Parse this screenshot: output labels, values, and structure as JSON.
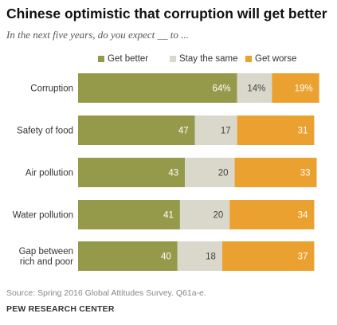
{
  "title": "Chinese optimistic that corruption will get better",
  "subtitle": "In the next five years, do you expect __ to ...",
  "source": "Source: Spring 2016 Global Attitudes Survey. Q61a-e.",
  "brand": "PEW RESEARCH CENTER",
  "colors": {
    "get_better": "#959a4b",
    "stay_same": "#dad7cb",
    "get_worse": "#eaa12f",
    "label_light": "#ffffff",
    "label_dark": "#444444"
  },
  "chart_data": {
    "type": "bar",
    "orientation": "horizontal",
    "stacked": true,
    "categories": [
      "Corruption",
      "Safety of food",
      "Air pollution",
      "Water pollution",
      "Gap between rich and poor"
    ],
    "category_lines": [
      [
        "Corruption"
      ],
      [
        "Safety of food"
      ],
      [
        "Air pollution"
      ],
      [
        "Water pollution"
      ],
      [
        "Gap between",
        "rich and poor"
      ]
    ],
    "series": [
      {
        "name": "Get better",
        "values": [
          64,
          47,
          43,
          41,
          40
        ],
        "labels": [
          "64%",
          "47",
          "43",
          "41",
          "40"
        ]
      },
      {
        "name": "Stay the same",
        "values": [
          14,
          17,
          20,
          20,
          18
        ],
        "labels": [
          "14%",
          "17",
          "20",
          "20",
          "18"
        ]
      },
      {
        "name": "Get worse",
        "values": [
          19,
          31,
          33,
          34,
          37
        ],
        "labels": [
          "19%",
          "31",
          "33",
          "34",
          "37"
        ]
      }
    ],
    "xlim": [
      0,
      100
    ],
    "legend_position": "top"
  }
}
